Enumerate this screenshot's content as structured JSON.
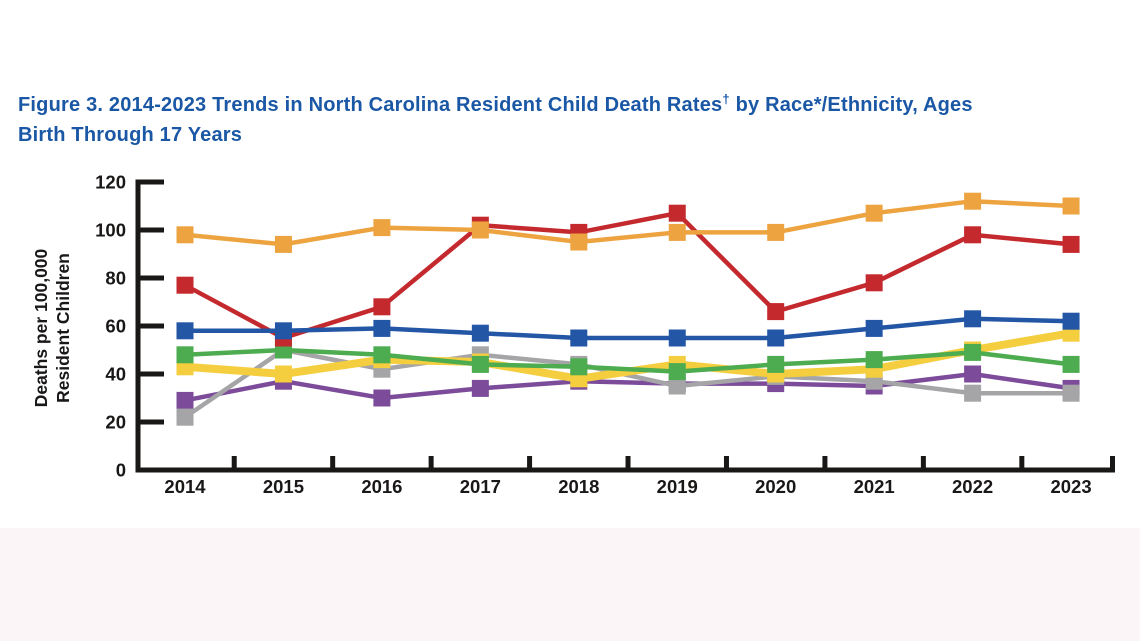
{
  "page": {
    "background": "#ffffff",
    "bottom_strip_color": "#FBF5F7"
  },
  "title": {
    "part1": "Figure 3. 2014-2023 Trends in North Carolina Resident Child Death Rates",
    "sup": "†",
    "part2": " by Race*/Ethnicity, Ages",
    "line2": "Birth Through 17 Years",
    "color": "#1A57A5"
  },
  "axis": {
    "color": "#1A1717"
  },
  "chart_data": {
    "type": "line",
    "title": "Figure 3. 2014-2023 Trends in North Carolina Resident Child Death Rates† by Race*/Ethnicity, Ages Birth Through 17 Years",
    "ylabel": "Deaths per 100,000 Resident Children",
    "ylabel_line1": "Deaths per 100,000",
    "ylabel_line2": "Resident Children",
    "xlabel": "",
    "ylim": [
      0,
      120
    ],
    "yticks": [
      0,
      20,
      40,
      60,
      80,
      100,
      120
    ],
    "categories": [
      "2014",
      "2015",
      "2016",
      "2017",
      "2018",
      "2019",
      "2020",
      "2021",
      "2022",
      "2023"
    ],
    "grid": false,
    "legend_position": "none visible in image (series identified by color only)",
    "marker": "square",
    "series_draw_order": "first listed is drawn at bottom, last on top",
    "series": [
      {
        "name": "purple",
        "color": "#7C4C9B",
        "line_width": 4.5,
        "values": [
          29,
          37,
          30,
          34,
          37,
          36,
          36,
          35,
          40,
          34
        ]
      },
      {
        "name": "gray",
        "color": "#A5A5A8",
        "line_width": 4.5,
        "values": [
          22,
          50,
          42,
          48,
          44,
          35,
          39,
          37,
          32,
          32
        ]
      },
      {
        "name": "yellow",
        "color": "#F4CE3E",
        "line_width": 8,
        "values": [
          43,
          40,
          46,
          45,
          38,
          44,
          40,
          42,
          50,
          57
        ]
      },
      {
        "name": "green",
        "color": "#4CAC4F",
        "line_width": 4.5,
        "values": [
          48,
          50,
          48,
          44,
          43,
          41,
          44,
          46,
          49,
          44
        ]
      },
      {
        "name": "red",
        "color": "#C4292E",
        "line_width": 4.5,
        "values": [
          77,
          55,
          68,
          102,
          99,
          107,
          66,
          78,
          98,
          94
        ]
      },
      {
        "name": "blue",
        "color": "#2356A5",
        "line_width": 4.5,
        "values": [
          58,
          58,
          59,
          57,
          55,
          55,
          55,
          59,
          63,
          62
        ]
      },
      {
        "name": "orange",
        "color": "#EDA440",
        "line_width": 4.5,
        "values": [
          98,
          94,
          101,
          100,
          95,
          99,
          99,
          107,
          112,
          110
        ]
      }
    ]
  }
}
